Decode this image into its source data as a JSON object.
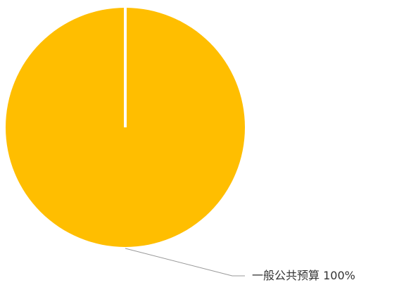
{
  "chart_data": {
    "type": "pie",
    "categories": [
      "一般公共预算"
    ],
    "values": [
      100
    ],
    "value_labels": [
      "100%"
    ],
    "colors": [
      "#FFBE00"
    ]
  }
}
